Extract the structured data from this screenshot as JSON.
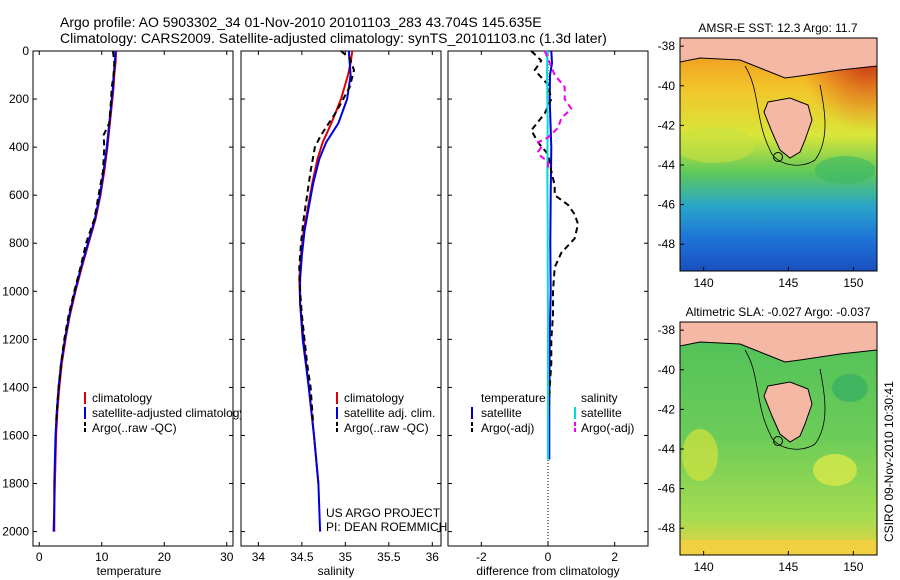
{
  "titles": {
    "line1": "Argo profile: AO 5903302_34 01-Nov-2010 20101103_283 43.704S 145.635E",
    "line2": "Climatology: CARS2009. Satellite-adjusted climatology: synTS_20101103.nc (1.3d later)"
  },
  "chart_data": [
    {
      "type": "line",
      "name": "temperature-profile",
      "xlabel": "temperature",
      "ylabel": "",
      "xlim": [
        -1,
        31
      ],
      "ylim": [
        2060,
        0
      ],
      "xticks": [
        0,
        10,
        20,
        30
      ],
      "yticks": [
        0,
        200,
        400,
        600,
        800,
        1000,
        1200,
        1400,
        1600,
        1800,
        2000
      ],
      "legend": [
        "climatology",
        "satellite-adjusted climatology",
        "Argo(..raw -QC)"
      ],
      "series": [
        {
          "name": "climatology",
          "color": "#dd0000",
          "dash": "",
          "depth": [
            0,
            50,
            100,
            150,
            200,
            300,
            400,
            500,
            600,
            700,
            800,
            900,
            1000,
            1100,
            1200,
            1300,
            1400,
            1500,
            1600,
            1700,
            1800,
            1900,
            2000
          ],
          "values": [
            12.3,
            12.2,
            12.0,
            11.9,
            11.7,
            11.3,
            10.9,
            10.4,
            9.8,
            9.0,
            7.9,
            6.8,
            5.8,
            4.9,
            4.2,
            3.6,
            3.2,
            2.9,
            2.7,
            2.6,
            2.5,
            2.4,
            2.4
          ]
        },
        {
          "name": "satellite-adjusted climatology",
          "color": "#0000dd",
          "dash": "",
          "depth": [
            0,
            50,
            100,
            150,
            200,
            300,
            400,
            500,
            600,
            700,
            800,
            900,
            1000,
            1100,
            1200,
            1300,
            1400,
            1500,
            1600,
            1700,
            1800,
            1900,
            2000
          ],
          "values": [
            12.2,
            12.1,
            11.9,
            11.8,
            11.6,
            11.2,
            10.8,
            10.3,
            9.7,
            8.9,
            7.8,
            6.7,
            5.7,
            4.8,
            4.1,
            3.5,
            3.1,
            2.8,
            2.6,
            2.5,
            2.4,
            2.4,
            2.3
          ]
        },
        {
          "name": "Argo(..raw -QC)",
          "color": "#000000",
          "dash": "6,4",
          "depth": [
            0,
            50,
            100,
            150,
            200,
            300,
            350,
            400,
            500,
            600,
            700,
            800,
            900,
            1000,
            1100,
            1200,
            1300,
            1400,
            1500,
            1550
          ],
          "values": [
            11.8,
            12.0,
            11.9,
            11.6,
            11.5,
            11.2,
            10.3,
            10.4,
            10.2,
            9.5,
            8.8,
            7.5,
            6.6,
            5.6,
            4.7,
            4.0,
            3.5,
            3.1,
            2.8,
            2.7
          ]
        }
      ]
    },
    {
      "type": "line",
      "name": "salinity-profile",
      "xlabel": "salinity",
      "ylabel": "",
      "xlim": [
        33.8,
        36.1
      ],
      "ylim": [
        2060,
        0
      ],
      "xticks": [
        34,
        34.5,
        35,
        35.5,
        36
      ],
      "xtick_labels": [
        "34",
        "34.5",
        "35",
        "35.5",
        "36"
      ],
      "legend": [
        "climatology",
        "satellite adj. clim.",
        "Argo(..raw -QC)"
      ],
      "series": [
        {
          "name": "climatology",
          "color": "#dd0000",
          "dash": "",
          "depth": [
            0,
            50,
            100,
            200,
            300,
            380,
            450,
            550,
            650,
            750,
            850,
            950,
            1050,
            1200,
            1400,
            1600,
            1800
          ],
          "values": [
            35.08,
            35.06,
            35.03,
            34.95,
            34.84,
            34.74,
            34.68,
            34.62,
            34.57,
            34.52,
            34.49,
            34.47,
            34.48,
            34.52,
            34.58,
            34.64,
            34.69
          ]
        },
        {
          "name": "satellite adj. clim.",
          "color": "#0000dd",
          "dash": "",
          "depth": [
            0,
            50,
            100,
            200,
            300,
            380,
            450,
            550,
            650,
            750,
            850,
            950,
            1050,
            1200,
            1400,
            1600,
            1800,
            2000
          ],
          "values": [
            35.04,
            35.05,
            35.06,
            35.02,
            34.92,
            34.78,
            34.7,
            34.63,
            34.58,
            34.53,
            34.5,
            34.48,
            34.48,
            34.51,
            34.58,
            34.64,
            34.69,
            34.71
          ]
        },
        {
          "name": "Argo(..raw -QC)",
          "color": "#000000",
          "dash": "6,4",
          "depth": [
            0,
            30,
            80,
            150,
            250,
            350,
            400,
            500,
            600,
            700,
            800,
            900,
            1000,
            1100,
            1200,
            1300,
            1400,
            1500,
            1550
          ],
          "values": [
            34.95,
            35.05,
            35.1,
            35.05,
            34.9,
            34.72,
            34.65,
            34.6,
            34.56,
            34.52,
            34.49,
            34.47,
            34.48,
            34.5,
            34.53,
            34.56,
            34.6,
            34.62,
            34.63
          ]
        }
      ]
    },
    {
      "type": "line",
      "name": "difference-profile",
      "xlabel": "difference from climatology",
      "ylabel": "",
      "xlim": [
        -3,
        3
      ],
      "ylim": [
        2060,
        0
      ],
      "xticks": [
        -2,
        0,
        2
      ],
      "legend_headers": [
        "temperature",
        "salinity"
      ],
      "legend": [
        "satellite",
        "Argo(-adj)",
        "satellite",
        "Argo(-adj)"
      ],
      "series": [
        {
          "name": "temperature satellite",
          "color": "#0000cc",
          "dash": "",
          "depth": [
            0,
            50,
            100,
            200,
            400,
            600,
            800,
            1000,
            1200,
            1500,
            1700
          ],
          "values": [
            0.1,
            0.12,
            0.06,
            0.05,
            0.1,
            0.08,
            0.07,
            0.08,
            0.05,
            0.04,
            0.04
          ]
        },
        {
          "name": "temperature Argo(-adj)",
          "color": "#000000",
          "dash": "6,4",
          "depth": [
            0,
            40,
            80,
            140,
            200,
            260,
            330,
            380,
            430,
            500,
            560,
            600,
            640,
            680,
            720,
            780,
            840,
            900,
            1000,
            1100,
            1200,
            1300,
            1400,
            1550
          ],
          "values": [
            -0.5,
            -0.2,
            -0.4,
            0.0,
            0.1,
            -0.1,
            -0.5,
            -0.3,
            0.0,
            0.1,
            0.2,
            0.2,
            0.6,
            0.8,
            0.9,
            0.8,
            0.4,
            0.2,
            0.15,
            0.15,
            0.1,
            0.1,
            0.05,
            0.0
          ]
        },
        {
          "name": "salinity satellite",
          "color": "#00dddd",
          "dash": "",
          "depth": [
            0,
            100,
            300,
            500,
            700,
            900,
            1100,
            1300,
            1500,
            1700
          ],
          "values": [
            -0.02,
            -0.03,
            -0.01,
            -0.02,
            -0.01,
            -0.01,
            0.0,
            0.0,
            0.0,
            0.0
          ]
        },
        {
          "name": "salinity Argo(-adj)",
          "color": "#ee00ee",
          "dash": "6,4",
          "depth": [
            0,
            100,
            150,
            200,
            240,
            280,
            320,
            360,
            380,
            400,
            420,
            440,
            460,
            500
          ],
          "values": [
            -0.1,
            0.2,
            0.5,
            0.5,
            0.7,
            0.4,
            0.3,
            0.0,
            -0.3,
            -0.2,
            -0.3,
            -0.2,
            0.0,
            0.0
          ]
        }
      ]
    }
  ],
  "annotations": {
    "project": "US ARGO PROJECT",
    "pi": "PI: DEAN ROEMMICH"
  },
  "maps": [
    {
      "title": "AMSR-E SST: 12.3 Argo: 11.7",
      "xticks": [
        "140",
        "145",
        "150"
      ],
      "yticks": [
        "-38",
        "-40",
        "-42",
        "-44",
        "-46",
        "-48"
      ]
    },
    {
      "title": "Altimetric SLA: -0.027 Argo: -0.037",
      "xticks": [
        "140",
        "145",
        "150"
      ],
      "yticks": [
        "-38",
        "-40",
        "-42",
        "-44",
        "-46",
        "-48"
      ]
    }
  ],
  "side_label": "CSIRO 09-Nov-2010 10:30:41"
}
